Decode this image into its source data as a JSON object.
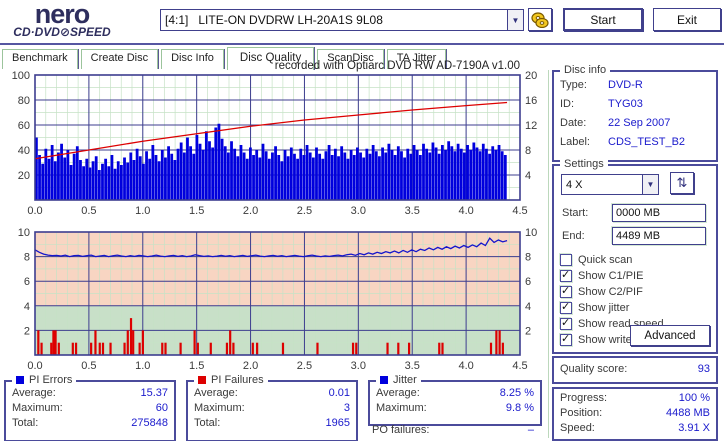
{
  "header": {
    "logo_line1": "nero",
    "logo_line2": "CD·DVD⊘SPEED",
    "drive": "[4:1]   LITE-ON DVDRW LH-20A1S 9L08",
    "start_label": "Start",
    "exit_label": "Exit"
  },
  "tabs": {
    "items": [
      "Benchmark",
      "Create Disc",
      "Disc Info",
      "Disc Quality",
      "ScanDisc",
      "TA Jitter"
    ],
    "active": "Disc Quality"
  },
  "chart_header": {
    "recorded_with": "recorded with Optiarc DVD RW AD-7190A  v1.00"
  },
  "colors": {
    "pi_errors_bar": "#0000dd",
    "read_speed_line": "#dd0000",
    "jitter_line": "#1515cc",
    "pi_failures_bar": "#dd0000",
    "grid_major": "#3d3d8f",
    "grid_minor": "#c6e2c6",
    "zone_warn": "#f8d5c2",
    "zone_good": "#c8e0c8",
    "value_text": "#1a1acc",
    "box_border": "#4b4b9b"
  },
  "chart_data": [
    {
      "type": "bar",
      "x_range": [
        0,
        4.5
      ],
      "data_end": 4.38,
      "x_ticks": [
        "0.0",
        "0.5",
        "1.0",
        "1.5",
        "2.0",
        "2.5",
        "3.0",
        "3.5",
        "4.0",
        "4.5"
      ],
      "left_axis": {
        "range": [
          0,
          100
        ],
        "ticks": [
          100,
          80,
          60,
          40,
          20
        ]
      },
      "right_axis": {
        "range": [
          0,
          20
        ],
        "ticks": [
          20,
          16,
          12,
          8,
          4
        ]
      },
      "grid": {
        "minor": [
          0.1,
          10
        ],
        "major": [
          0.5,
          20
        ]
      },
      "series": [
        {
          "name": "PI Errors",
          "type": "bar",
          "color": "#0000dd",
          "values": [
            50,
            36,
            29,
            41,
            33,
            44,
            31,
            38,
            45,
            34,
            40,
            28,
            37,
            43,
            32,
            27,
            33,
            26,
            31,
            35,
            24,
            29,
            33,
            27,
            36,
            25,
            31,
            28,
            34,
            30,
            38,
            32,
            41,
            35,
            29,
            39,
            33,
            44,
            36,
            31,
            40,
            34,
            43,
            37,
            32,
            41,
            46,
            38,
            50,
            43,
            37,
            52,
            45,
            40,
            55,
            47,
            42,
            58,
            61,
            49,
            43,
            38,
            47,
            41,
            35,
            44,
            38,
            33,
            42,
            36,
            40,
            34,
            45,
            39,
            33,
            38,
            43,
            36,
            31,
            40,
            35,
            42,
            37,
            33,
            41,
            36,
            44,
            38,
            34,
            42,
            37,
            33,
            39,
            44,
            36,
            41,
            35,
            43,
            38,
            33,
            40,
            36,
            42,
            38,
            34,
            41,
            37,
            44,
            39,
            35,
            42,
            38,
            45,
            40,
            36,
            43,
            39,
            34,
            41,
            37,
            44,
            40,
            36,
            45,
            41,
            38,
            46,
            42,
            37,
            44,
            40,
            47,
            43,
            39,
            45,
            41,
            38,
            44,
            40,
            46,
            42,
            39,
            45,
            41,
            37,
            43,
            40,
            44,
            39,
            36
          ]
        },
        {
          "name": "Read speed",
          "type": "line",
          "color": "#dd0000",
          "points": [
            [
              0,
              33
            ],
            [
              0.5,
              40
            ],
            [
              1.0,
              47
            ],
            [
              1.5,
              53
            ],
            [
              2.0,
              59
            ],
            [
              2.5,
              64
            ],
            [
              3.0,
              68
            ],
            [
              3.5,
              72
            ],
            [
              4.0,
              75.5
            ],
            [
              4.38,
              78
            ]
          ]
        }
      ]
    },
    {
      "type": "line",
      "x_range": [
        0,
        4.5
      ],
      "data_end": 4.38,
      "x_ticks": [
        "0.0",
        "0.5",
        "1.0",
        "1.5",
        "2.0",
        "2.5",
        "3.0",
        "3.5",
        "4.0",
        "4.5"
      ],
      "left_axis": {
        "range": [
          0,
          10
        ],
        "ticks": [
          10,
          8,
          6,
          4,
          2
        ]
      },
      "right_axis": {
        "range": [
          0,
          10
        ],
        "ticks": [
          10,
          8,
          6,
          4,
          2
        ]
      },
      "grid": {
        "minor": [
          0.1,
          1
        ],
        "major": [
          0.5,
          2
        ]
      },
      "zones": [
        {
          "from": 4,
          "to": 10,
          "color": "#f8d5c2"
        },
        {
          "from": 0,
          "to": 4,
          "color": "#c8e0c8"
        }
      ],
      "series": [
        {
          "name": "Jitter",
          "type": "line",
          "color": "#1515cc",
          "values": [
            8.55,
            8.35,
            8.2,
            8.12,
            8.08,
            8.1,
            8.05,
            8.12,
            8.0,
            8.08,
            8.1,
            8.02,
            8.08,
            8.12,
            8.0,
            8.05,
            8.1,
            8.0,
            8.07,
            8.12,
            8.05,
            8.0,
            8.08,
            8.02,
            8.1,
            8.06,
            8.0,
            8.05,
            8.12,
            8.04,
            8.0,
            8.06,
            8.1,
            8.02,
            8.08,
            8.0,
            8.05,
            8.15,
            8.08,
            8.02,
            8.06,
            8.0,
            8.04,
            8.1,
            8.03,
            8.08,
            8.0,
            8.05,
            8.1,
            8.02,
            8.07,
            8.12,
            8.04,
            8.0,
            8.06,
            8.1,
            8.03,
            8.08,
            8.0,
            8.05,
            8.1,
            8.04,
            8.0,
            8.07,
            8.12,
            8.05,
            8.0,
            8.06,
            8.02,
            8.08,
            8.12,
            8.06,
            8.15,
            8.2,
            8.1,
            8.25,
            8.15,
            8.3,
            8.2,
            8.35,
            8.25,
            8.4,
            8.3,
            8.45,
            8.3,
            8.5,
            8.35,
            8.55,
            8.4,
            8.6,
            8.5,
            8.7,
            8.55,
            8.75,
            8.6,
            8.8,
            8.65,
            8.85,
            8.7,
            8.9,
            8.75,
            8.95,
            8.8,
            9.1,
            8.9,
            9.5,
            9.15,
            9.35,
            9.2,
            9.3
          ]
        },
        {
          "name": "PI Failures",
          "type": "spikes",
          "color": "#dd0000",
          "points": [
            [
              0.03,
              2
            ],
            [
              0.06,
              1
            ],
            [
              0.15,
              1
            ],
            [
              0.17,
              2
            ],
            [
              0.19,
              2
            ],
            [
              0.22,
              1
            ],
            [
              0.35,
              1
            ],
            [
              0.38,
              1
            ],
            [
              0.52,
              1
            ],
            [
              0.56,
              2
            ],
            [
              0.6,
              1
            ],
            [
              0.63,
              1
            ],
            [
              0.7,
              1
            ],
            [
              0.83,
              1
            ],
            [
              0.86,
              2
            ],
            [
              0.89,
              3
            ],
            [
              0.91,
              2
            ],
            [
              0.97,
              1
            ],
            [
              1.0,
              2
            ],
            [
              1.18,
              1
            ],
            [
              1.21,
              1
            ],
            [
              1.35,
              1
            ],
            [
              1.48,
              2
            ],
            [
              1.51,
              1
            ],
            [
              1.63,
              1
            ],
            [
              1.78,
              1
            ],
            [
              1.81,
              2
            ],
            [
              1.84,
              1
            ],
            [
              2.02,
              1
            ],
            [
              2.06,
              1
            ],
            [
              2.3,
              1
            ],
            [
              2.62,
              1
            ],
            [
              2.95,
              1
            ],
            [
              2.98,
              1
            ],
            [
              3.27,
              1
            ],
            [
              3.37,
              1
            ],
            [
              3.47,
              1
            ],
            [
              3.75,
              1
            ],
            [
              3.78,
              1
            ],
            [
              4.23,
              1
            ],
            [
              4.28,
              2
            ],
            [
              4.31,
              2
            ],
            [
              4.34,
              1
            ]
          ]
        }
      ]
    }
  ],
  "stats": {
    "boxes": [
      {
        "title": "PI Errors",
        "swatch": "#0000dd",
        "rows": [
          [
            "Average:",
            "15.37"
          ],
          [
            "Maximum:",
            "60"
          ],
          [
            "Total:",
            "275848"
          ]
        ]
      },
      {
        "title": "PI Failures",
        "swatch": "#dd0000",
        "rows": [
          [
            "Average:",
            "0.01"
          ],
          [
            "Maximum:",
            "3"
          ],
          [
            "Total:",
            "1965"
          ]
        ]
      },
      {
        "title": "Jitter",
        "swatch": "#0000dd",
        "rows": [
          [
            "Average:",
            "8.25 %"
          ],
          [
            "Maximum:",
            "9.8 %"
          ]
        ]
      }
    ],
    "po_failures_label": "PO failures:",
    "po_failures_value": "–"
  },
  "disc_info": {
    "title": "Disc info",
    "rows": [
      [
        "Type:",
        "DVD-R"
      ],
      [
        "ID:",
        "TYG03"
      ],
      [
        "Date:",
        "22 Sep 2007"
      ],
      [
        "Label:",
        "CDS_TEST_B2"
      ]
    ]
  },
  "settings": {
    "title": "Settings",
    "speed": "4 X",
    "start_label": "Start:",
    "start_value": "0000 MB",
    "end_label": "End:",
    "end_value": "4489 MB",
    "checkboxes": [
      {
        "label": "Quick scan",
        "checked": false
      },
      {
        "label": "Show C1/PIE",
        "checked": true
      },
      {
        "label": "Show C2/PIF",
        "checked": true
      },
      {
        "label": "Show jitter",
        "checked": true
      },
      {
        "label": "Show read speed",
        "checked": true
      },
      {
        "label": "Show write speed",
        "checked": true
      }
    ],
    "advanced_label": "Advanced"
  },
  "quality": {
    "label": "Quality score:",
    "value": "93"
  },
  "progress": {
    "rows": [
      [
        "Progress:",
        "100 %"
      ],
      [
        "Position:",
        "4488 MB"
      ],
      [
        "Speed:",
        "3.91 X"
      ]
    ]
  }
}
